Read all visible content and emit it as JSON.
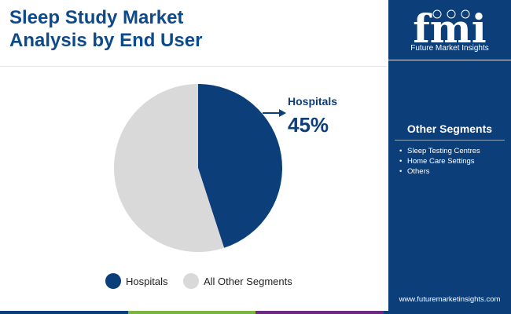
{
  "header": {
    "title_line1": "Sleep Study Market",
    "title_line2": "Analysis by End User"
  },
  "chart_data": {
    "type": "pie",
    "title": "Sleep Study Market Analysis by End User",
    "slices": [
      {
        "label": "Hospitals",
        "value": 45,
        "color": "#0c3e7a"
      },
      {
        "label": "All Other Segments",
        "value": 55,
        "color": "#d9d9d9"
      }
    ],
    "callout": {
      "label": "Hospitals",
      "value_text": "45%"
    },
    "legend": {
      "position": "bottom"
    }
  },
  "sidebar": {
    "brand_name": "Future Market Insights",
    "logo_letters": "fmi",
    "section_title": "Other Segments",
    "items": [
      "Sleep Testing Centres",
      "Home Care Settings",
      "Others"
    ],
    "website": "www.futuremarketinsights.com"
  },
  "colors": {
    "brand_blue": "#0c3e7a",
    "title_blue": "#0d4a8c",
    "slice_gray": "#d9d9d9",
    "footer_stripes": [
      "#0c3e7a",
      "#7bb440",
      "#6c2b80",
      "#0c3e7a"
    ]
  }
}
